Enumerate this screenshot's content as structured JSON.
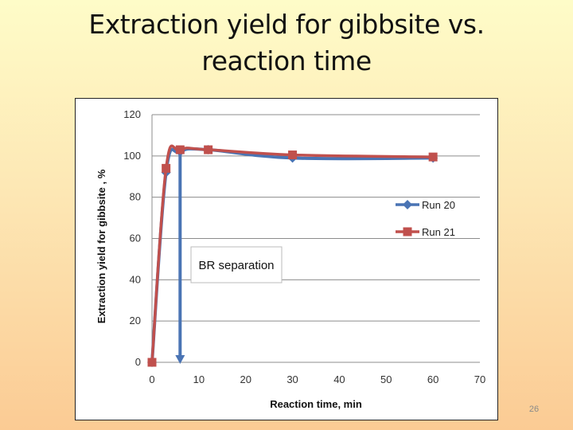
{
  "slide": {
    "title_line1": "Extraction yield for gibbsite vs.",
    "title_line2": "reaction time",
    "page_number": "26"
  },
  "chart_data": {
    "type": "line",
    "xlabel": "Reaction time, min",
    "ylabel": "Extraction  yield for gibbsite , %",
    "xlim": [
      0,
      70
    ],
    "ylim": [
      0,
      120
    ],
    "xticks": [
      0,
      10,
      20,
      30,
      40,
      50,
      60,
      70
    ],
    "yticks": [
      0,
      20,
      40,
      60,
      80,
      100,
      120
    ],
    "grid": "horizontal",
    "legend_position": "right",
    "series": [
      {
        "name": "Run 20",
        "color": "#4a74b4",
        "marker": "diamond",
        "x": [
          0,
          3,
          6,
          12,
          30,
          60
        ],
        "y": [
          0,
          92,
          102,
          103,
          99,
          99
        ]
      },
      {
        "name": "Run 21",
        "color": "#c0504d",
        "marker": "square",
        "x": [
          0,
          3,
          6,
          12,
          30,
          60
        ],
        "y": [
          0,
          94,
          103,
          103,
          100.5,
          99.5
        ]
      }
    ],
    "annotations": [
      {
        "text": "BR separation",
        "arrow_x": 6,
        "arrow_from_y": 103,
        "arrow_to_y": 0,
        "color": "#4a74b4"
      }
    ]
  }
}
